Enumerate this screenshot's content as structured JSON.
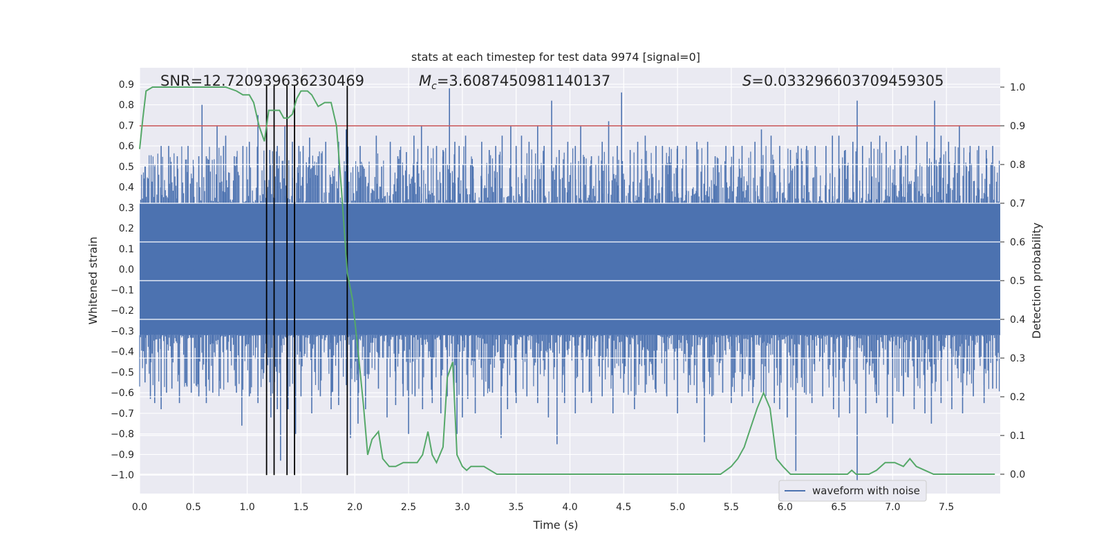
{
  "chart_data": {
    "type": "line",
    "title": "stats at each timestep for test data 9974 [signal=0]",
    "xlabel": "Time (s)",
    "ylabel": "Whitened strain",
    "y2label": "Detection probability",
    "xlim": [
      0.0,
      8.0
    ],
    "ylim": [
      -1.09,
      0.98
    ],
    "y2lim": [
      -0.05,
      1.05
    ],
    "xticks": [
      "0.0",
      "0.5",
      "1.0",
      "1.5",
      "2.0",
      "2.5",
      "3.0",
      "3.5",
      "4.0",
      "4.5",
      "5.0",
      "5.5",
      "6.0",
      "6.5",
      "7.0",
      "7.5"
    ],
    "yticks": [
      "0.9",
      "0.8",
      "0.7",
      "0.6",
      "0.5",
      "0.4",
      "0.3",
      "0.2",
      "0.1",
      "0.0",
      "−0.1",
      "−0.2",
      "−0.3",
      "−0.4",
      "−0.5",
      "−0.6",
      "−0.7",
      "−0.8",
      "−0.9",
      "−1.0"
    ],
    "y2ticks": [
      "1.0",
      "0.9",
      "0.8",
      "0.7",
      "0.6",
      "0.5",
      "0.4",
      "0.3",
      "0.2",
      "0.1",
      "0.0"
    ],
    "grid": true,
    "legend": {
      "label": "waveform with noise",
      "location": "lower-right"
    },
    "annotations": {
      "snr_prefix": "SNR=",
      "snr": "12.720939636230469",
      "mc_symbol": "M",
      "mc_subscript": "c",
      "mc_value": "=3.6087450981140137",
      "s_symbol": "S",
      "s_value": "=0.033296603709459305"
    },
    "threshold": {
      "y2": 0.9,
      "color": "#c44e52"
    },
    "trigger_lines": {
      "x": [
        1.18,
        1.25,
        1.37,
        1.44,
        1.93
      ],
      "y_from": -1.0,
      "color": "#000000"
    },
    "waveform": {
      "name": "waveform with noise",
      "color": "#4c72b0",
      "core_amplitude": 0.32,
      "peaks": [
        [
          0.05,
          0.5
        ],
        [
          0.14,
          0.5
        ],
        [
          0.2,
          0.6
        ],
        [
          0.27,
          0.6
        ],
        [
          0.35,
          0.55
        ],
        [
          0.45,
          0.6
        ],
        [
          0.5,
          0.5
        ],
        [
          0.55,
          0.55
        ],
        [
          0.58,
          0.8
        ],
        [
          0.62,
          0.55
        ],
        [
          0.72,
          0.7
        ],
        [
          0.78,
          0.6
        ],
        [
          0.8,
          0.65
        ],
        [
          0.88,
          0.55
        ],
        [
          0.96,
          0.6
        ],
        [
          1.02,
          0.62
        ],
        [
          1.1,
          0.75
        ],
        [
          1.21,
          0.58
        ],
        [
          1.28,
          0.6
        ],
        [
          1.35,
          0.7
        ],
        [
          1.42,
          0.62
        ],
        [
          1.48,
          0.6
        ],
        [
          1.52,
          0.6
        ],
        [
          1.55,
          0.52
        ],
        [
          1.58,
          0.64
        ],
        [
          1.66,
          0.55
        ],
        [
          1.73,
          0.62
        ],
        [
          1.85,
          0.62
        ],
        [
          1.92,
          0.68
        ],
        [
          2.05,
          0.6
        ],
        [
          2.1,
          0.45
        ],
        [
          2.2,
          0.65
        ],
        [
          2.25,
          0.5
        ],
        [
          2.33,
          0.62
        ],
        [
          2.4,
          0.55
        ],
        [
          2.48,
          0.57
        ],
        [
          2.55,
          0.65
        ],
        [
          2.62,
          0.7
        ],
        [
          2.68,
          0.6
        ],
        [
          2.76,
          0.6
        ],
        [
          2.82,
          0.58
        ],
        [
          2.88,
          0.88
        ],
        [
          2.93,
          0.62
        ],
        [
          2.97,
          0.6
        ],
        [
          3.03,
          0.65
        ],
        [
          3.1,
          0.5
        ],
        [
          3.18,
          0.62
        ],
        [
          3.25,
          0.58
        ],
        [
          3.31,
          0.6
        ],
        [
          3.37,
          0.65
        ],
        [
          3.45,
          0.7
        ],
        [
          3.5,
          0.6
        ],
        [
          3.55,
          0.65
        ],
        [
          3.62,
          0.62
        ],
        [
          3.7,
          0.7
        ],
        [
          3.76,
          0.6
        ],
        [
          3.83,
          0.82
        ],
        [
          3.9,
          0.58
        ],
        [
          3.98,
          0.62
        ],
        [
          4.05,
          0.6
        ],
        [
          4.1,
          0.7
        ],
        [
          4.2,
          0.55
        ],
        [
          4.3,
          0.62
        ],
        [
          4.36,
          0.72
        ],
        [
          4.44,
          0.6
        ],
        [
          4.48,
          0.86
        ],
        [
          4.56,
          0.58
        ],
        [
          4.63,
          0.62
        ],
        [
          4.7,
          0.65
        ],
        [
          4.8,
          0.6
        ],
        [
          4.86,
          0.6
        ],
        [
          4.92,
          0.55
        ],
        [
          5.0,
          0.6
        ],
        [
          5.08,
          0.6
        ],
        [
          5.18,
          0.62
        ],
        [
          5.28,
          0.62
        ],
        [
          5.35,
          0.55
        ],
        [
          5.45,
          0.6
        ],
        [
          5.52,
          0.6
        ],
        [
          5.6,
          0.6
        ],
        [
          5.72,
          0.62
        ],
        [
          5.78,
          0.68
        ],
        [
          5.87,
          0.65
        ],
        [
          5.95,
          0.6
        ],
        [
          6.05,
          0.58
        ],
        [
          6.12,
          0.6
        ],
        [
          6.2,
          0.6
        ],
        [
          6.28,
          0.6
        ],
        [
          6.38,
          0.6
        ],
        [
          6.44,
          0.65
        ],
        [
          6.5,
          0.65
        ],
        [
          6.56,
          0.58
        ],
        [
          6.63,
          0.62
        ],
        [
          6.67,
          0.82
        ],
        [
          6.72,
          0.6
        ],
        [
          6.8,
          0.62
        ],
        [
          6.88,
          0.65
        ],
        [
          6.94,
          0.62
        ],
        [
          7.02,
          0.58
        ],
        [
          7.08,
          0.6
        ],
        [
          7.14,
          0.6
        ],
        [
          7.22,
          0.65
        ],
        [
          7.32,
          0.62
        ],
        [
          7.39,
          0.82
        ],
        [
          7.45,
          0.65
        ],
        [
          7.52,
          0.62
        ],
        [
          7.62,
          0.7
        ],
        [
          7.72,
          0.6
        ],
        [
          7.8,
          0.6
        ],
        [
          7.87,
          0.58
        ],
        [
          7.93,
          0.6
        ]
      ],
      "troughs": [
        [
          0.05,
          -0.55
        ],
        [
          0.1,
          -0.63
        ],
        [
          0.14,
          -0.65
        ],
        [
          0.2,
          -0.68
        ],
        [
          0.25,
          -0.6
        ],
        [
          0.3,
          -0.58
        ],
        [
          0.37,
          -0.65
        ],
        [
          0.44,
          -0.57
        ],
        [
          0.48,
          -0.6
        ],
        [
          0.55,
          -0.62
        ],
        [
          0.62,
          -0.65
        ],
        [
          0.68,
          -0.6
        ],
        [
          0.75,
          -0.58
        ],
        [
          0.82,
          -0.55
        ],
        [
          0.9,
          -0.6
        ],
        [
          0.95,
          -0.76
        ],
        [
          1.02,
          -0.62
        ],
        [
          1.1,
          -0.65
        ],
        [
          1.22,
          -0.72
        ],
        [
          1.28,
          -0.68
        ],
        [
          1.31,
          -0.93
        ],
        [
          1.38,
          -0.68
        ],
        [
          1.45,
          -0.8
        ],
        [
          1.5,
          -0.62
        ],
        [
          1.6,
          -0.7
        ],
        [
          1.68,
          -0.62
        ],
        [
          1.78,
          -0.68
        ],
        [
          1.85,
          -0.66
        ],
        [
          1.96,
          -0.82
        ],
        [
          2.03,
          -0.75
        ],
        [
          2.1,
          -0.68
        ],
        [
          2.22,
          -0.58
        ],
        [
          2.3,
          -0.72
        ],
        [
          2.38,
          -0.66
        ],
        [
          2.45,
          -0.62
        ],
        [
          2.5,
          -0.8
        ],
        [
          2.56,
          -0.62
        ],
        [
          2.63,
          -0.68
        ],
        [
          2.72,
          -0.65
        ],
        [
          2.8,
          -0.7
        ],
        [
          2.86,
          -0.62
        ],
        [
          2.95,
          -0.8
        ],
        [
          3.0,
          -0.72
        ],
        [
          3.05,
          -0.63
        ],
        [
          3.12,
          -0.7
        ],
        [
          3.2,
          -0.62
        ],
        [
          3.28,
          -0.6
        ],
        [
          3.36,
          -0.82
        ],
        [
          3.42,
          -0.68
        ],
        [
          3.5,
          -0.65
        ],
        [
          3.6,
          -0.62
        ],
        [
          3.7,
          -0.65
        ],
        [
          3.8,
          -0.72
        ],
        [
          3.88,
          -0.85
        ],
        [
          3.95,
          -0.65
        ],
        [
          4.05,
          -0.7
        ],
        [
          4.12,
          -0.6
        ],
        [
          4.2,
          -0.65
        ],
        [
          4.3,
          -0.62
        ],
        [
          4.4,
          -0.7
        ],
        [
          4.5,
          -0.6
        ],
        [
          4.6,
          -0.68
        ],
        [
          4.7,
          -0.6
        ],
        [
          4.8,
          -0.6
        ],
        [
          4.9,
          -0.62
        ],
        [
          5.0,
          -0.7
        ],
        [
          5.1,
          -0.6
        ],
        [
          5.18,
          -0.65
        ],
        [
          5.25,
          -0.84
        ],
        [
          5.32,
          -0.62
        ],
        [
          5.42,
          -0.6
        ],
        [
          5.5,
          -0.65
        ],
        [
          5.6,
          -0.62
        ],
        [
          5.7,
          -0.65
        ],
        [
          5.8,
          -0.6
        ],
        [
          5.9,
          -0.65
        ],
        [
          5.95,
          -0.68
        ],
        [
          6.02,
          -0.72
        ],
        [
          6.1,
          -0.98
        ],
        [
          6.18,
          -0.6
        ],
        [
          6.25,
          -0.65
        ],
        [
          6.35,
          -0.62
        ],
        [
          6.45,
          -0.68
        ],
        [
          6.5,
          -0.72
        ],
        [
          6.6,
          -0.7
        ],
        [
          6.67,
          -1.05
        ],
        [
          6.75,
          -0.7
        ],
        [
          6.85,
          -0.65
        ],
        [
          6.95,
          -0.72
        ],
        [
          7.0,
          -0.75
        ],
        [
          7.1,
          -0.62
        ],
        [
          7.2,
          -0.68
        ],
        [
          7.3,
          -0.7
        ],
        [
          7.36,
          -0.75
        ],
        [
          7.45,
          -0.65
        ],
        [
          7.55,
          -0.68
        ],
        [
          7.65,
          -0.7
        ],
        [
          7.75,
          -0.62
        ],
        [
          7.85,
          -0.65
        ],
        [
          7.93,
          -0.58
        ]
      ]
    },
    "probability": {
      "name": "detection probability",
      "color": "#55a868",
      "x": [
        0.0,
        0.03,
        0.06,
        0.12,
        0.2,
        0.3,
        0.4,
        0.5,
        0.6,
        0.7,
        0.8,
        0.9,
        0.96,
        1.02,
        1.06,
        1.11,
        1.16,
        1.2,
        1.25,
        1.3,
        1.34,
        1.38,
        1.42,
        1.46,
        1.5,
        1.56,
        1.6,
        1.66,
        1.72,
        1.78,
        1.83,
        1.88,
        1.93,
        1.98,
        2.03,
        2.08,
        2.12,
        2.16,
        2.22,
        2.26,
        2.32,
        2.38,
        2.45,
        2.52,
        2.58,
        2.63,
        2.68,
        2.72,
        2.76,
        2.82,
        2.86,
        2.91,
        2.95,
        3.0,
        3.04,
        3.08,
        3.14,
        3.2,
        3.26,
        3.32,
        3.38,
        3.5,
        3.7,
        4.0,
        4.2,
        4.4,
        4.6,
        4.8,
        5.0,
        5.2,
        5.33,
        5.4,
        5.45,
        5.5,
        5.56,
        5.62,
        5.68,
        5.74,
        5.8,
        5.86,
        5.92,
        5.98,
        6.05,
        6.2,
        6.3,
        6.4,
        6.5,
        6.58,
        6.62,
        6.66,
        6.72,
        6.78,
        6.85,
        6.93,
        7.02,
        7.1,
        7.16,
        7.22,
        7.3,
        7.38,
        7.45,
        7.55,
        7.65,
        7.75,
        7.85,
        7.95
      ],
      "y": [
        0.84,
        0.92,
        0.99,
        1.0,
        1.0,
        1.0,
        1.0,
        1.0,
        1.0,
        1.0,
        1.0,
        0.99,
        0.98,
        0.98,
        0.96,
        0.9,
        0.86,
        0.94,
        0.94,
        0.94,
        0.92,
        0.92,
        0.93,
        0.97,
        0.99,
        0.99,
        0.98,
        0.95,
        0.96,
        0.96,
        0.9,
        0.72,
        0.52,
        0.45,
        0.32,
        0.18,
        0.05,
        0.09,
        0.11,
        0.04,
        0.02,
        0.02,
        0.03,
        0.03,
        0.03,
        0.05,
        0.11,
        0.05,
        0.03,
        0.07,
        0.25,
        0.29,
        0.05,
        0.02,
        0.01,
        0.02,
        0.02,
        0.02,
        0.01,
        0.0,
        0.0,
        0.0,
        0.0,
        0.0,
        0.0,
        0.0,
        0.0,
        0.0,
        0.0,
        0.0,
        0.0,
        0.0,
        0.01,
        0.02,
        0.04,
        0.07,
        0.12,
        0.17,
        0.21,
        0.17,
        0.04,
        0.02,
        0.0,
        0.0,
        0.0,
        0.0,
        0.0,
        0.0,
        0.01,
        0.0,
        0.0,
        0.0,
        0.01,
        0.03,
        0.03,
        0.02,
        0.04,
        0.02,
        0.01,
        0.0,
        0.0,
        0.0,
        0.0,
        0.0,
        0.0,
        0.0
      ]
    }
  }
}
